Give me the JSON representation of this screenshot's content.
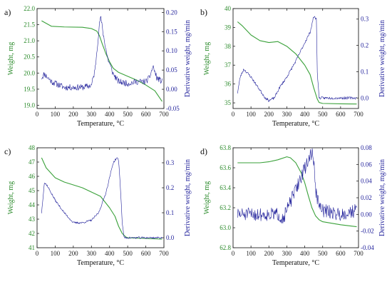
{
  "colors": {
    "weight": "#3aa13a",
    "derivative": "#1f1f9a",
    "axis": "#222222"
  },
  "chart_data": [
    {
      "panel_label": "a)",
      "type": "line",
      "xlabel": "Temperature, °C",
      "ylabel_left": "Weight, mg",
      "ylabel_right": "Derivative weight, mg/min",
      "xlim": [
        0,
        700
      ],
      "xticks": [
        0,
        100,
        200,
        300,
        400,
        500,
        600,
        700
      ],
      "ylim_left": [
        18.9,
        22.0
      ],
      "yticks_left": [
        19.0,
        19.5,
        20.0,
        20.5,
        21.0,
        21.5,
        22.0
      ],
      "ytick_labels_left": [
        "19.0",
        "19.5",
        "20.0",
        "20.5",
        "21.0",
        "21.5",
        "22.0"
      ],
      "ylim_right": [
        -0.05,
        0.21
      ],
      "yticks_right": [
        -0.05,
        0.0,
        0.05,
        0.1,
        0.15,
        0.2
      ],
      "ytick_labels_right": [
        "-0.05",
        "0.00",
        "0.05",
        "0.10",
        "0.15",
        "0.20"
      ],
      "series": [
        {
          "axis": "left",
          "x": [
            25,
            80,
            150,
            250,
            300,
            330,
            345,
            360,
            380,
            400,
            420,
            450,
            500,
            550,
            600,
            650,
            690
          ],
          "y": [
            21.62,
            21.45,
            21.43,
            21.42,
            21.38,
            21.3,
            21.15,
            20.9,
            20.6,
            20.35,
            20.15,
            20.02,
            19.9,
            19.78,
            19.63,
            19.45,
            19.12
          ]
        },
        {
          "axis": "right",
          "noise": 0.008,
          "seed": 11,
          "x": [
            25,
            40,
            80,
            150,
            250,
            300,
            320,
            340,
            350,
            360,
            370,
            390,
            420,
            450,
            500,
            550,
            600,
            620,
            640,
            660,
            690
          ],
          "y": [
            0.03,
            0.04,
            0.02,
            0.005,
            0.005,
            0.01,
            0.05,
            0.15,
            0.19,
            0.16,
            0.13,
            0.08,
            0.04,
            0.02,
            0.015,
            0.02,
            0.02,
            0.03,
            0.06,
            0.03,
            0.02
          ]
        }
      ]
    },
    {
      "panel_label": "b)",
      "type": "line",
      "xlabel": "Temperature, °C",
      "ylabel_left": "Weight, mg",
      "ylabel_right": "Derivative weight, mg/min",
      "xlim": [
        0,
        700
      ],
      "xticks": [
        0,
        100,
        200,
        300,
        400,
        500,
        600,
        700
      ],
      "ylim_left": [
        34.7,
        40.0
      ],
      "yticks_left": [
        35,
        36,
        37,
        38,
        39,
        40
      ],
      "ytick_labels_left": [
        "35",
        "36",
        "37",
        "38",
        "39",
        "40"
      ],
      "ylim_right": [
        -0.04,
        0.34
      ],
      "yticks_right": [
        0.0,
        0.1,
        0.2,
        0.3
      ],
      "ytick_labels_right": [
        "0.0",
        "0.1",
        "0.2",
        "0.3"
      ],
      "series": [
        {
          "axis": "left",
          "x": [
            25,
            50,
            100,
            150,
            200,
            250,
            300,
            350,
            400,
            430,
            450,
            470,
            480,
            500,
            600,
            690
          ],
          "y": [
            39.3,
            39.1,
            38.6,
            38.3,
            38.2,
            38.25,
            38.0,
            37.6,
            37.0,
            36.5,
            35.8,
            35.2,
            35.02,
            34.97,
            34.95,
            34.94
          ]
        },
        {
          "axis": "right",
          "noise": 0.005,
          "seed": 23,
          "x": [
            25,
            40,
            60,
            100,
            150,
            180,
            200,
            230,
            260,
            300,
            350,
            400,
            430,
            450,
            465,
            470,
            480,
            500,
            600,
            690
          ],
          "y": [
            0.02,
            0.08,
            0.11,
            0.08,
            0.03,
            0.0,
            -0.01,
            0.0,
            0.04,
            0.08,
            0.14,
            0.21,
            0.25,
            0.31,
            0.3,
            0.1,
            0.0,
            0.0,
            0.0,
            0.0
          ]
        }
      ]
    },
    {
      "panel_label": "c)",
      "type": "line",
      "xlabel": "Temperature, °C",
      "ylabel_left": "Weight, mg",
      "ylabel_right": "Derivative weight, mg/min",
      "xlim": [
        0,
        700
      ],
      "xticks": [
        0,
        100,
        200,
        300,
        400,
        500,
        600,
        700
      ],
      "ylim_left": [
        41.0,
        48.0
      ],
      "yticks_left": [
        41,
        42,
        43,
        44,
        45,
        46,
        47,
        48
      ],
      "ytick_labels_left": [
        "41",
        "42",
        "43",
        "44",
        "45",
        "46",
        "47",
        "48"
      ],
      "ylim_right": [
        -0.04,
        0.36
      ],
      "yticks_right": [
        0.0,
        0.1,
        0.2,
        0.3
      ],
      "ytick_labels_right": [
        "0.0",
        "0.1",
        "0.2",
        "0.3"
      ],
      "series": [
        {
          "axis": "left",
          "x": [
            25,
            50,
            100,
            150,
            200,
            250,
            300,
            350,
            400,
            430,
            450,
            470,
            490,
            500,
            600,
            690
          ],
          "y": [
            47.3,
            46.6,
            45.9,
            45.6,
            45.4,
            45.2,
            44.9,
            44.6,
            43.8,
            43.2,
            42.5,
            42.0,
            41.75,
            41.7,
            41.65,
            41.6
          ]
        },
        {
          "axis": "right",
          "noise": 0.004,
          "seed": 37,
          "x": [
            25,
            40,
            55,
            100,
            150,
            200,
            250,
            300,
            340,
            380,
            420,
            440,
            450,
            460,
            470,
            480,
            500,
            600,
            690
          ],
          "y": [
            0.1,
            0.22,
            0.21,
            0.15,
            0.1,
            0.06,
            0.06,
            0.07,
            0.1,
            0.18,
            0.3,
            0.32,
            0.31,
            0.2,
            0.06,
            0.0,
            0.0,
            0.0,
            0.0
          ]
        }
      ]
    },
    {
      "panel_label": "d)",
      "type": "line",
      "xlabel": "Temperature, °C",
      "ylabel_left": "Weight, mg",
      "ylabel_right": "Derivative weight, mg/min",
      "xlim": [
        0,
        700
      ],
      "xticks": [
        0,
        100,
        200,
        300,
        400,
        500,
        600,
        700
      ],
      "ylim_left": [
        62.8,
        63.8
      ],
      "yticks_left": [
        62.8,
        63.0,
        63.2,
        63.4,
        63.6,
        63.8
      ],
      "ytick_labels_left": [
        "62.8",
        "63.0",
        "63.2",
        "63.4",
        "63.6",
        "63.8"
      ],
      "ylim_right": [
        -0.04,
        0.08
      ],
      "yticks_right": [
        -0.04,
        -0.02,
        0.0,
        0.02,
        0.04,
        0.06,
        0.08
      ],
      "ytick_labels_right": [
        "-0.04",
        "-0.02",
        "0.00",
        "0.02",
        "0.04",
        "0.06",
        "0.08"
      ],
      "series": [
        {
          "axis": "left",
          "x": [
            25,
            100,
            150,
            200,
            250,
            300,
            320,
            350,
            380,
            400,
            420,
            440,
            460,
            480,
            500,
            600,
            690
          ],
          "y": [
            63.65,
            63.65,
            63.65,
            63.66,
            63.68,
            63.71,
            63.7,
            63.65,
            63.55,
            63.45,
            63.32,
            63.2,
            63.12,
            63.08,
            63.06,
            63.03,
            63.01
          ]
        },
        {
          "axis": "right",
          "noise": 0.008,
          "seed": 51,
          "x": [
            25,
            100,
            200,
            250,
            280,
            300,
            330,
            360,
            390,
            410,
            430,
            440,
            450,
            460,
            480,
            500,
            600,
            690
          ],
          "y": [
            0.0,
            0.0,
            0.0,
            0.0,
            -0.005,
            0.005,
            0.02,
            0.035,
            0.05,
            0.06,
            0.07,
            0.075,
            0.065,
            0.03,
            0.01,
            0.005,
            0.0,
            0.005
          ]
        }
      ]
    }
  ]
}
